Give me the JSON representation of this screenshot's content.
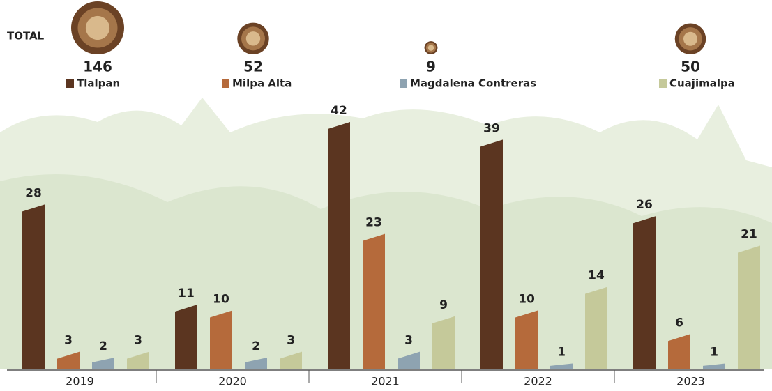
{
  "chart_data": {
    "type": "bar",
    "total_label": "TOTAL",
    "categories": [
      "2019",
      "2020",
      "2021",
      "2022",
      "2023"
    ],
    "series": [
      {
        "name": "Tlalpan",
        "color": "#5b3520",
        "total": 146,
        "values": [
          28,
          11,
          42,
          39,
          26
        ]
      },
      {
        "name": "Milpa Alta",
        "color": "#b56a3b",
        "total": 52,
        "values": [
          3,
          10,
          23,
          10,
          6
        ]
      },
      {
        "name": "Magdalena Contreras",
        "color": "#8ea3b1",
        "total": 9,
        "values": [
          2,
          2,
          3,
          1,
          1
        ]
      },
      {
        "name": "Cuajimalpa",
        "color": "#c5c99a",
        "total": 50,
        "values": [
          3,
          3,
          9,
          14,
          21
        ]
      }
    ]
  }
}
